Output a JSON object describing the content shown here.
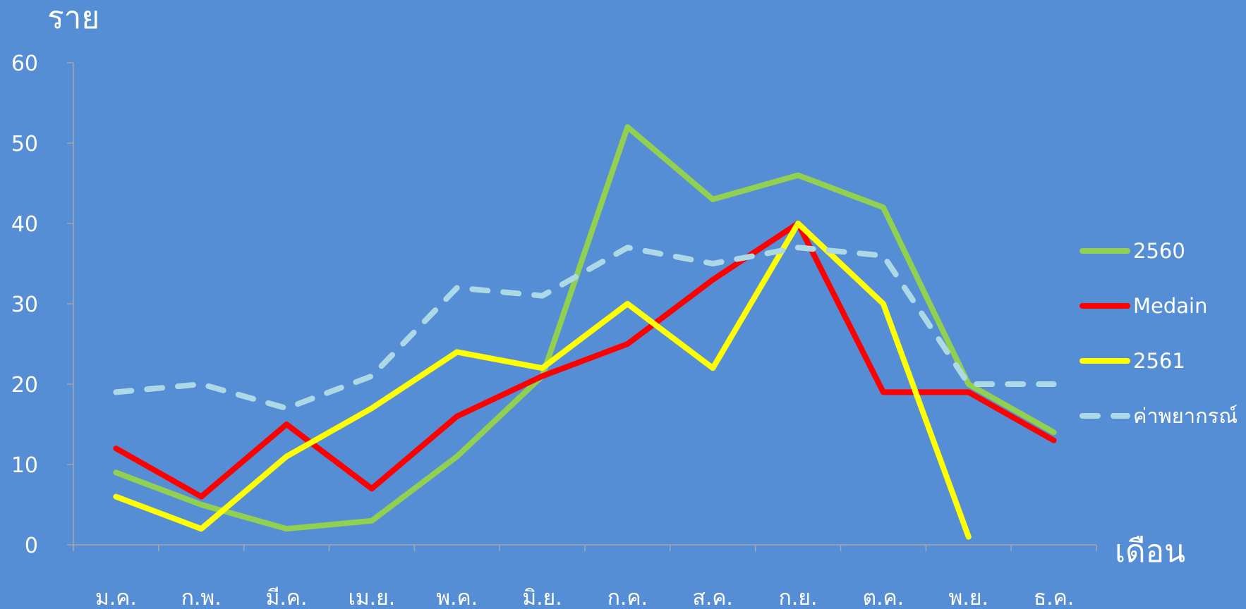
{
  "chart_data": {
    "type": "line",
    "title": "",
    "ylabel": "ราย",
    "xlabel": "เดือน",
    "ylim": [
      0,
      60
    ],
    "yticks": [
      0,
      10,
      20,
      30,
      40,
      50,
      60
    ],
    "grid": false,
    "legend_position": "right",
    "categories": [
      "ม.ค.",
      "ก.พ.",
      "มี.ค.",
      "เม.ย.",
      "พ.ค.",
      "มิ.ย.",
      "ก.ค.",
      "ส.ค.",
      "ก.ย.",
      "ต.ค.",
      "พ.ย.",
      "ธ.ค."
    ],
    "series": [
      {
        "name": "2560",
        "color": "#92d050",
        "dashed": false,
        "values": [
          9,
          5,
          2,
          3,
          11,
          21,
          52,
          43,
          46,
          42,
          20,
          14
        ]
      },
      {
        "name": "Medain",
        "color": "#ff0000",
        "dashed": false,
        "values": [
          12,
          6,
          15,
          7,
          16,
          21,
          25,
          33,
          40,
          19,
          19,
          13
        ]
      },
      {
        "name": "2561",
        "color": "#ffff00",
        "dashed": false,
        "values": [
          6,
          2,
          11,
          17,
          24,
          22,
          30,
          22,
          40,
          30,
          1,
          null
        ]
      },
      {
        "name": "ค่าพยากรณ์",
        "color": "#add8e6",
        "dashed": true,
        "values": [
          19,
          20,
          17,
          21,
          32,
          31,
          37,
          35,
          37,
          36,
          20,
          20
        ]
      }
    ],
    "axis_color": "#a6a6a6",
    "text_color": "#ffffff"
  }
}
